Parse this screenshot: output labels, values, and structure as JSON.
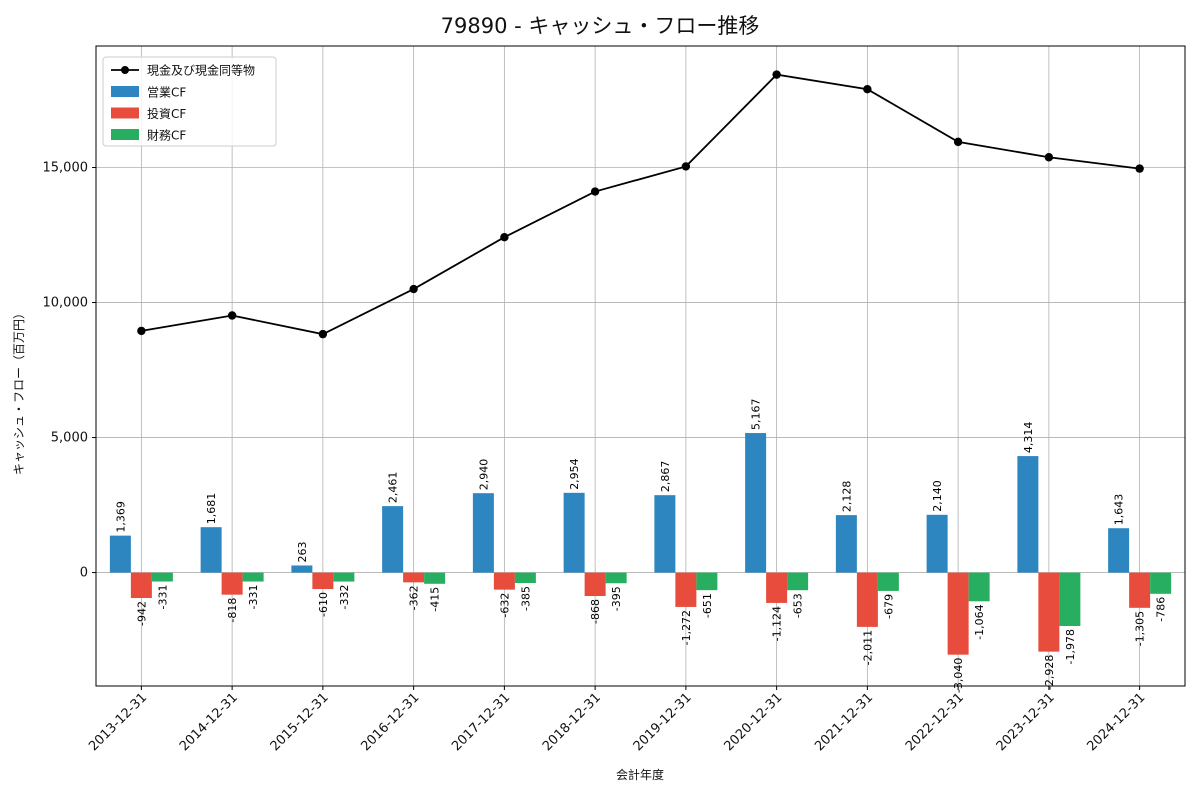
{
  "chart_data": {
    "type": "bar",
    "title": "79890 - キャッシュ・フロー推移",
    "xlabel": "会計年度",
    "ylabel": "キャッシュ・フロー（百万円）",
    "categories": [
      "2013-12-31",
      "2014-12-31",
      "2015-12-31",
      "2016-12-31",
      "2017-12-31",
      "2018-12-31",
      "2019-12-31",
      "2020-12-31",
      "2021-12-31",
      "2022-12-31",
      "2023-12-31",
      "2024-12-31"
    ],
    "series": [
      {
        "name": "営業CF",
        "color": "#2e86c1",
        "values": [
          1369,
          1681,
          263,
          2461,
          2940,
          2954,
          2867,
          5167,
          2128,
          2140,
          4314,
          1643
        ],
        "labels": [
          "1,369",
          "1,681",
          "263",
          "2,461",
          "2,940",
          "2,954",
          "2,867",
          "5,167",
          "2,128",
          "2,140",
          "4,314",
          "1,643"
        ]
      },
      {
        "name": "投資CF",
        "color": "#e74c3c",
        "values": [
          -942,
          -818,
          -610,
          -362,
          -632,
          -868,
          -1272,
          -1124,
          -2011,
          -3040,
          -2928,
          -1305
        ],
        "labels": [
          "-942",
          "-818",
          "-610",
          "-362",
          "-632",
          "-868",
          "-1,272",
          "-1,124",
          "-2,011",
          "-3,040",
          "-2,928",
          "-1,305"
        ]
      },
      {
        "name": "財務CF",
        "color": "#27ae60",
        "values": [
          -331,
          -331,
          -332,
          -415,
          -385,
          -395,
          -651,
          -653,
          -679,
          -1064,
          -1978,
          -786
        ],
        "labels": [
          "-331",
          "-331",
          "-332",
          "-415",
          "-385",
          "-395",
          "-651",
          "-653",
          "-679",
          "-1,064",
          "-1,978",
          "-786"
        ]
      }
    ],
    "line": {
      "name": "現金及び現金同等物",
      "color": "#000000",
      "values": [
        8950,
        9520,
        8830,
        10500,
        12420,
        14110,
        15040,
        18440,
        17900,
        15950,
        15380,
        14960
      ]
    },
    "yticks": [
      0,
      5000,
      10000,
      15000
    ],
    "ytick_labels": [
      "0",
      "5,000",
      "10,000",
      "15,000"
    ],
    "ylim": [
      -4200,
      19500
    ],
    "grid": true,
    "legend_position": "top-left"
  }
}
